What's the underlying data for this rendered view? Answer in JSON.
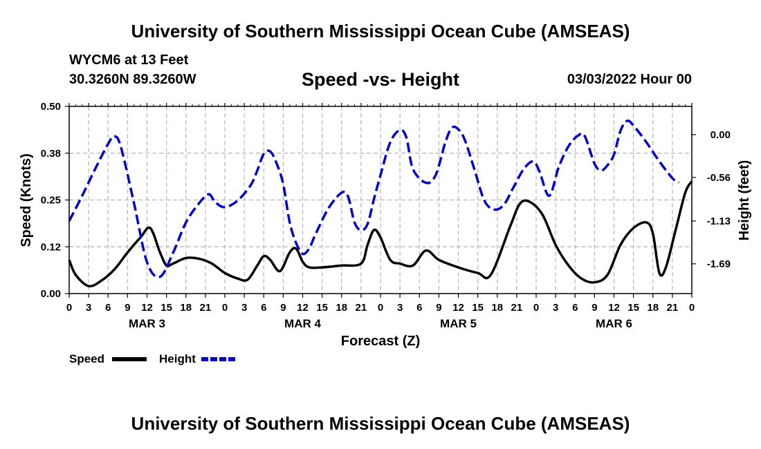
{
  "header": {
    "title_top": "University of Southern Mississippi Ocean Cube (AMSEAS)",
    "station": "WYCM6 at 13 Feet",
    "coords": "30.3260N  89.3260W",
    "subtitle": "Speed -vs- Height",
    "datetime": "03/03/2022 Hour 00",
    "title_bottom": "University of Southern Mississippi Ocean Cube (AMSEAS)"
  },
  "chart_data": {
    "type": "line",
    "title": "Speed -vs- Height",
    "xlabel": "Forecast (Z)",
    "ylabel": "Speed (Knots)",
    "y2label": "Height (feet)",
    "x_range": [
      0,
      96
    ],
    "x_ticks": [
      0,
      3,
      6,
      9,
      12,
      15,
      18,
      21,
      24,
      27,
      30,
      33,
      36,
      39,
      42,
      45,
      48,
      51,
      54,
      57,
      60,
      63,
      66,
      69,
      72,
      75,
      78,
      81,
      84,
      87,
      90,
      93,
      96
    ],
    "x_tick_labels": [
      "0",
      "3",
      "6",
      "9",
      "12",
      "15",
      "18",
      "21",
      "0",
      "3",
      "6",
      "9",
      "12",
      "15",
      "18",
      "21",
      "0",
      "3",
      "6",
      "9",
      "12",
      "15",
      "18",
      "21",
      "0",
      "3",
      "6",
      "9",
      "12",
      "15",
      "18",
      "21",
      "0"
    ],
    "day_labels": [
      {
        "label": "MAR 3",
        "x": 12
      },
      {
        "label": "MAR 4",
        "x": 36
      },
      {
        "label": "MAR 5",
        "x": 60
      },
      {
        "label": "MAR 6",
        "x": 84
      }
    ],
    "y_left": {
      "range": [
        0,
        0.5
      ],
      "ticks": [
        0,
        0.125,
        0.25,
        0.375,
        0.5
      ],
      "tick_labels": [
        "0.00",
        "0.12",
        "0.25",
        "0.38",
        "0.50"
      ]
    },
    "y_right": {
      "range": [
        -2.08,
        0.37
      ],
      "ticks": [
        0.0,
        -0.56,
        -1.13,
        -1.69
      ],
      "tick_labels": [
        "0.00",
        "-0.56",
        "-1.13",
        "-1.69"
      ]
    },
    "grid": true,
    "legend_position": "bottom-left",
    "series": [
      {
        "name": "Speed",
        "axis": "left",
        "color": "#000000",
        "style": "solid",
        "points": [
          [
            0,
            0.09
          ],
          [
            1,
            0.05
          ],
          [
            3,
            0.02
          ],
          [
            5,
            0.035
          ],
          [
            7,
            0.065
          ],
          [
            9,
            0.11
          ],
          [
            11,
            0.15
          ],
          [
            12.5,
            0.175
          ],
          [
            14,
            0.11
          ],
          [
            15,
            0.075
          ],
          [
            16,
            0.08
          ],
          [
            18,
            0.095
          ],
          [
            20,
            0.093
          ],
          [
            22,
            0.08
          ],
          [
            24,
            0.055
          ],
          [
            26,
            0.04
          ],
          [
            27.5,
            0.037
          ],
          [
            29,
            0.075
          ],
          [
            30,
            0.1
          ],
          [
            31,
            0.09
          ],
          [
            32.5,
            0.06
          ],
          [
            34,
            0.11
          ],
          [
            35,
            0.12
          ],
          [
            36,
            0.085
          ],
          [
            37,
            0.07
          ],
          [
            39,
            0.07
          ],
          [
            42,
            0.075
          ],
          [
            45,
            0.08
          ],
          [
            46,
            0.13
          ],
          [
            47,
            0.17
          ],
          [
            48,
            0.15
          ],
          [
            49.5,
            0.09
          ],
          [
            51,
            0.08
          ],
          [
            53,
            0.075
          ],
          [
            55,
            0.115
          ],
          [
            57,
            0.09
          ],
          [
            60,
            0.07
          ],
          [
            63,
            0.055
          ],
          [
            65,
            0.05
          ],
          [
            68,
            0.18
          ],
          [
            69.5,
            0.24
          ],
          [
            71,
            0.245
          ],
          [
            73,
            0.21
          ],
          [
            75,
            0.13
          ],
          [
            77,
            0.075
          ],
          [
            79,
            0.04
          ],
          [
            81,
            0.03
          ],
          [
            83,
            0.05
          ],
          [
            85,
            0.13
          ],
          [
            87,
            0.175
          ],
          [
            89,
            0.19
          ],
          [
            90,
            0.16
          ],
          [
            91,
            0.055
          ],
          [
            92,
            0.07
          ],
          [
            93.5,
            0.17
          ],
          [
            95,
            0.27
          ],
          [
            96,
            0.3
          ]
        ]
      },
      {
        "name": "Height",
        "axis": "right",
        "color": "#0000cc",
        "style": "dashed",
        "points": [
          [
            0,
            -1.13
          ],
          [
            2,
            -0.8
          ],
          [
            4,
            -0.45
          ],
          [
            6,
            -0.12
          ],
          [
            7,
            -0.02
          ],
          [
            8,
            -0.17
          ],
          [
            10,
            -0.9
          ],
          [
            12,
            -1.67
          ],
          [
            14,
            -1.86
          ],
          [
            16,
            -1.55
          ],
          [
            18,
            -1.15
          ],
          [
            20,
            -0.9
          ],
          [
            21.5,
            -0.78
          ],
          [
            22.5,
            -0.88
          ],
          [
            24,
            -0.95
          ],
          [
            26,
            -0.86
          ],
          [
            28,
            -0.66
          ],
          [
            29,
            -0.47
          ],
          [
            30,
            -0.25
          ],
          [
            31,
            -0.22
          ],
          [
            32,
            -0.38
          ],
          [
            33,
            -0.65
          ],
          [
            34,
            -1.15
          ],
          [
            35,
            -1.42
          ],
          [
            36,
            -1.56
          ],
          [
            37,
            -1.49
          ],
          [
            38,
            -1.3
          ],
          [
            40,
            -0.96
          ],
          [
            42,
            -0.76
          ],
          [
            43,
            -0.81
          ],
          [
            44,
            -1.15
          ],
          [
            45,
            -1.25
          ],
          [
            46,
            -1.17
          ],
          [
            47,
            -0.84
          ],
          [
            48,
            -0.53
          ],
          [
            49.5,
            -0.1
          ],
          [
            51,
            0.06
          ],
          [
            52,
            -0.04
          ],
          [
            53,
            -0.45
          ],
          [
            55,
            -0.63
          ],
          [
            56.5,
            -0.53
          ],
          [
            58,
            -0.1
          ],
          [
            59,
            0.09
          ],
          [
            60,
            0.07
          ],
          [
            61,
            -0.07
          ],
          [
            62.5,
            -0.46
          ],
          [
            64,
            -0.86
          ],
          [
            65.5,
            -0.98
          ],
          [
            67,
            -0.92
          ],
          [
            68.5,
            -0.69
          ],
          [
            70,
            -0.46
          ],
          [
            71.5,
            -0.35
          ],
          [
            72.5,
            -0.48
          ],
          [
            74,
            -0.8
          ],
          [
            75.5,
            -0.42
          ],
          [
            77,
            -0.15
          ],
          [
            78.5,
            -0.01
          ],
          [
            79.5,
            -0.02
          ],
          [
            81,
            -0.38
          ],
          [
            82,
            -0.47
          ],
          [
            83,
            -0.4
          ],
          [
            84,
            -0.26
          ],
          [
            85,
            0.05
          ],
          [
            86,
            0.18
          ],
          [
            87,
            0.12
          ],
          [
            89,
            -0.1
          ],
          [
            91,
            -0.35
          ],
          [
            93,
            -0.57
          ],
          [
            94,
            -0.63
          ]
        ]
      }
    ]
  }
}
